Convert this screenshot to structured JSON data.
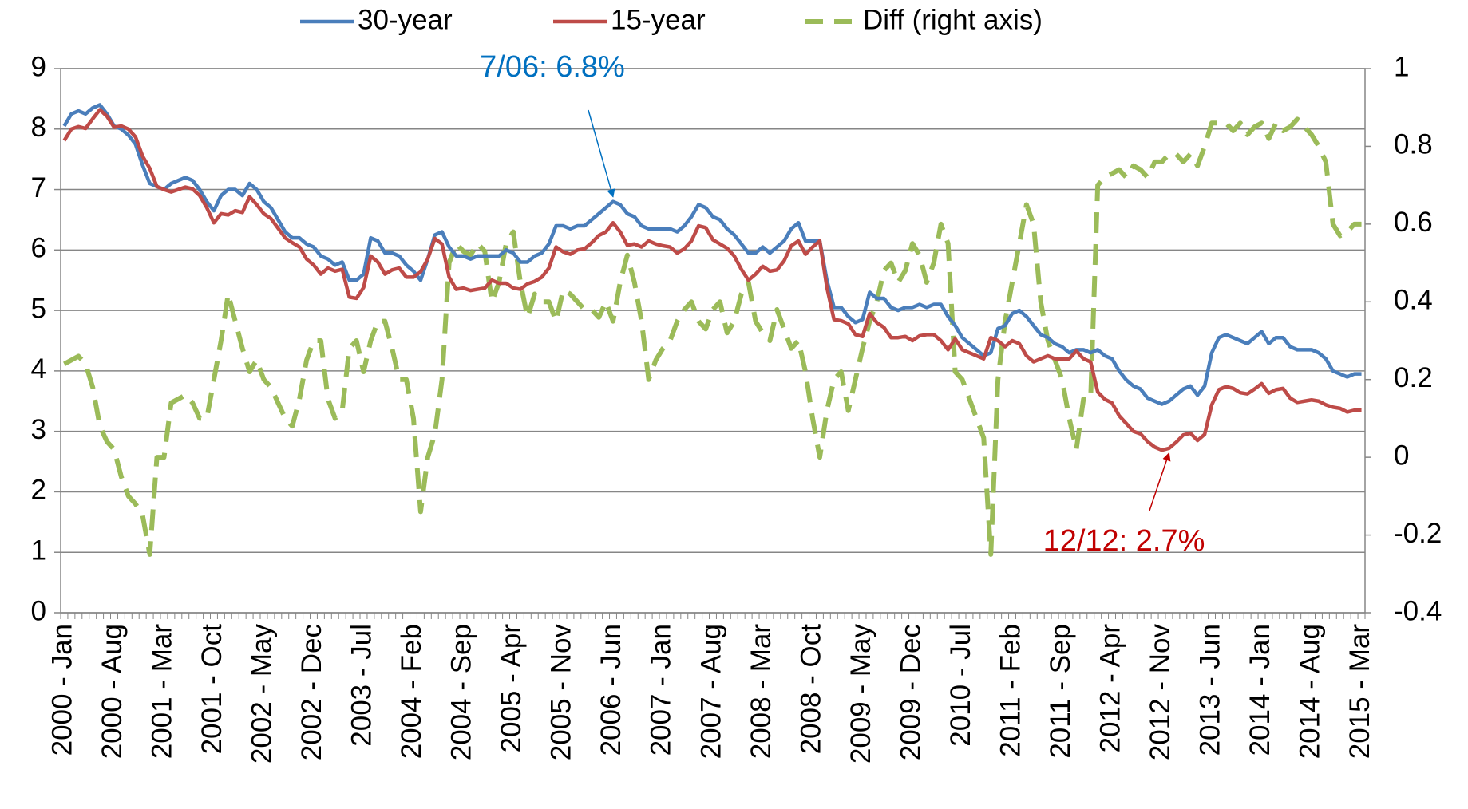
{
  "chart_data": {
    "type": "line",
    "legend": "top",
    "grid": true,
    "categories": [
      "2000 - Jan",
      null,
      null,
      null,
      null,
      null,
      null,
      "2000 - Aug",
      null,
      null,
      null,
      null,
      null,
      null,
      "2001 - Mar",
      null,
      null,
      null,
      null,
      null,
      null,
      "2001 - Oct",
      null,
      null,
      null,
      null,
      null,
      null,
      "2002 - May",
      null,
      null,
      null,
      null,
      null,
      null,
      "2002 - Dec",
      null,
      null,
      null,
      null,
      null,
      null,
      "2003 - Jul",
      null,
      null,
      null,
      null,
      null,
      null,
      "2004 - Feb",
      null,
      null,
      null,
      null,
      null,
      null,
      "2004 - Sep",
      null,
      null,
      null,
      null,
      null,
      null,
      "2005 - Apr",
      null,
      null,
      null,
      null,
      null,
      null,
      "2005 - Nov",
      null,
      null,
      null,
      null,
      null,
      null,
      "2006 - Jun",
      null,
      null,
      null,
      null,
      null,
      null,
      "2007 - Jan",
      null,
      null,
      null,
      null,
      null,
      null,
      "2007 - Aug",
      null,
      null,
      null,
      null,
      null,
      null,
      "2008 - Mar",
      null,
      null,
      null,
      null,
      null,
      null,
      "2008 - Oct",
      null,
      null,
      null,
      null,
      null,
      null,
      "2009 - May",
      null,
      null,
      null,
      null,
      null,
      null,
      "2009 - Dec",
      null,
      null,
      null,
      null,
      null,
      null,
      "2010 - Jul",
      null,
      null,
      null,
      null,
      null,
      null,
      "2011 - Feb",
      null,
      null,
      null,
      null,
      null,
      null,
      "2011 - Sep",
      null,
      null,
      null,
      null,
      null,
      null,
      "2012 - Apr",
      null,
      null,
      null,
      null,
      null,
      null,
      "2012 - Nov",
      null,
      null,
      null,
      null,
      null,
      null,
      "2013 - Jun",
      null,
      null,
      null,
      null,
      null,
      null,
      "2014 - Jan",
      null,
      null,
      null,
      null,
      null,
      null,
      "2014 - Aug",
      null,
      null,
      null,
      null,
      null,
      null,
      "2015 - Mar"
    ],
    "series": [
      {
        "name": "30-year",
        "color": "#4a7ebb",
        "values": [
          8.05,
          8.25,
          8.3,
          8.25,
          8.35,
          8.4,
          8.25,
          8.05,
          8.0,
          7.9,
          7.75,
          7.4,
          7.1,
          7.05,
          7.0,
          7.1,
          7.15,
          7.2,
          7.15,
          7.0,
          6.8,
          6.65,
          6.9,
          7.0,
          7.0,
          6.9,
          7.1,
          7.0,
          6.8,
          6.7,
          6.5,
          6.3,
          6.2,
          6.2,
          6.1,
          6.05,
          5.9,
          5.85,
          5.75,
          5.8,
          5.5,
          5.5,
          5.6,
          6.2,
          6.15,
          5.95,
          5.95,
          5.9,
          5.75,
          5.65,
          5.5,
          5.85,
          6.25,
          6.3,
          6.05,
          5.9,
          5.9,
          5.85,
          5.9,
          5.9,
          5.9,
          5.9,
          6.0,
          5.95,
          5.8,
          5.8,
          5.9,
          5.95,
          6.1,
          6.4,
          6.4,
          6.35,
          6.4,
          6.4,
          6.5,
          6.6,
          6.7,
          6.8,
          6.75,
          6.6,
          6.55,
          6.4,
          6.35,
          6.35,
          6.35,
          6.35,
          6.3,
          6.4,
          6.55,
          6.75,
          6.7,
          6.55,
          6.5,
          6.35,
          6.25,
          6.1,
          5.95,
          5.95,
          6.05,
          5.95,
          6.05,
          6.15,
          6.35,
          6.45,
          6.15,
          6.15,
          6.15,
          5.5,
          5.05,
          5.05,
          4.9,
          4.8,
          4.85,
          5.3,
          5.2,
          5.2,
          5.05,
          5.0,
          5.05,
          5.05,
          5.1,
          5.05,
          5.1,
          5.1,
          4.9,
          4.75,
          4.55,
          4.45,
          4.35,
          4.25,
          4.3,
          4.7,
          4.75,
          4.95,
          5.0,
          4.9,
          4.75,
          4.6,
          4.55,
          4.45,
          4.4,
          4.3,
          4.35,
          4.35,
          4.3,
          4.35,
          4.25,
          4.2,
          4.0,
          3.85,
          3.75,
          3.7,
          3.55,
          3.5,
          3.45,
          3.5,
          3.6,
          3.7,
          3.75,
          3.6,
          3.75,
          4.3,
          4.55,
          4.6,
          4.55,
          4.5,
          4.45,
          4.55,
          4.65,
          4.45,
          4.55,
          4.55,
          4.4,
          4.35,
          4.35,
          4.35,
          4.3,
          4.2,
          4.0,
          3.95,
          3.9,
          3.95,
          3.95
        ]
      },
      {
        "name": "15-year",
        "color": "#be4b48",
        "values": [
          7.81,
          8.0,
          8.04,
          8.01,
          8.17,
          8.32,
          8.21,
          8.03,
          8.05,
          8.0,
          7.87,
          7.55,
          7.35,
          7.05,
          7.0,
          6.96,
          7.0,
          7.04,
          7.01,
          6.9,
          6.7,
          6.45,
          6.6,
          6.58,
          6.65,
          6.62,
          6.88,
          6.75,
          6.6,
          6.52,
          6.36,
          6.2,
          6.12,
          6.05,
          5.85,
          5.75,
          5.6,
          5.7,
          5.65,
          5.68,
          5.22,
          5.2,
          5.38,
          5.9,
          5.8,
          5.6,
          5.67,
          5.7,
          5.55,
          5.55,
          5.64,
          5.85,
          6.19,
          6.1,
          5.55,
          5.35,
          5.37,
          5.33,
          5.35,
          5.37,
          5.5,
          5.45,
          5.45,
          5.37,
          5.35,
          5.44,
          5.48,
          5.55,
          5.7,
          6.05,
          5.97,
          5.93,
          6.0,
          6.02,
          6.12,
          6.24,
          6.3,
          6.45,
          6.3,
          6.08,
          6.1,
          6.05,
          6.15,
          6.1,
          6.07,
          6.05,
          5.95,
          6.02,
          6.15,
          6.4,
          6.37,
          6.17,
          6.1,
          6.03,
          5.9,
          5.68,
          5.5,
          5.6,
          5.73,
          5.65,
          5.67,
          5.82,
          6.07,
          6.15,
          5.93,
          6.05,
          6.15,
          5.38,
          4.85,
          4.83,
          4.78,
          4.6,
          4.57,
          4.95,
          4.8,
          4.72,
          4.55,
          4.55,
          4.57,
          4.5,
          4.58,
          4.6,
          4.6,
          4.5,
          4.35,
          4.53,
          4.35,
          4.3,
          4.25,
          4.2,
          4.55,
          4.5,
          4.4,
          4.5,
          4.45,
          4.25,
          4.15,
          4.2,
          4.25,
          4.2,
          4.2,
          4.2,
          4.33,
          4.2,
          4.15,
          3.65,
          3.53,
          3.47,
          3.26,
          3.13,
          3.0,
          2.96,
          2.83,
          2.74,
          2.69,
          2.72,
          2.82,
          2.94,
          2.97,
          2.85,
          2.95,
          3.44,
          3.69,
          3.74,
          3.71,
          3.64,
          3.62,
          3.7,
          3.79,
          3.63,
          3.69,
          3.71,
          3.55,
          3.48,
          3.5,
          3.52,
          3.5,
          3.44,
          3.4,
          3.38,
          3.32,
          3.35,
          3.35
        ]
      },
      {
        "name": "Diff (right axis)",
        "color": "#9bbb59",
        "axis": "y2",
        "dashed": true,
        "values": [
          0.24,
          0.25,
          0.26,
          0.24,
          0.18,
          0.08,
          0.04,
          0.02,
          -0.05,
          -0.1,
          -0.12,
          -0.15,
          -0.25,
          0.0,
          0.0,
          0.14,
          0.15,
          0.16,
          0.14,
          0.1,
          0.1,
          0.2,
          0.3,
          0.42,
          0.35,
          0.28,
          0.22,
          0.25,
          0.2,
          0.18,
          0.14,
          0.1,
          0.08,
          0.15,
          0.25,
          0.3,
          0.3,
          0.15,
          0.1,
          0.12,
          0.28,
          0.3,
          0.22,
          0.3,
          0.35,
          0.35,
          0.28,
          0.2,
          0.2,
          0.1,
          -0.14,
          0.0,
          0.06,
          0.2,
          0.5,
          0.55,
          0.53,
          0.52,
          0.55,
          0.53,
          0.4,
          0.45,
          0.55,
          0.58,
          0.45,
          0.36,
          0.42,
          0.4,
          0.4,
          0.35,
          0.43,
          0.42,
          0.4,
          0.38,
          0.38,
          0.36,
          0.4,
          0.35,
          0.45,
          0.52,
          0.45,
          0.35,
          0.2,
          0.25,
          0.28,
          0.3,
          0.35,
          0.38,
          0.4,
          0.35,
          0.33,
          0.38,
          0.4,
          0.32,
          0.35,
          0.42,
          0.45,
          0.35,
          0.32,
          0.3,
          0.38,
          0.33,
          0.28,
          0.3,
          0.22,
          0.1,
          0.0,
          0.12,
          0.2,
          0.22,
          0.12,
          0.2,
          0.28,
          0.35,
          0.4,
          0.48,
          0.5,
          0.45,
          0.48,
          0.55,
          0.52,
          0.45,
          0.5,
          0.6,
          0.55,
          0.22,
          0.2,
          0.15,
          0.1,
          0.05,
          -0.25,
          0.2,
          0.35,
          0.45,
          0.55,
          0.65,
          0.6,
          0.4,
          0.3,
          0.25,
          0.2,
          0.1,
          0.02,
          0.15,
          0.15,
          0.7,
          0.72,
          0.73,
          0.74,
          0.72,
          0.75,
          0.74,
          0.72,
          0.76,
          0.76,
          0.78,
          0.78,
          0.76,
          0.78,
          0.75,
          0.8,
          0.86,
          0.86,
          0.86,
          0.84,
          0.86,
          0.83,
          0.85,
          0.86,
          0.82,
          0.86,
          0.84,
          0.85,
          0.87,
          0.85,
          0.83,
          0.8,
          0.76,
          0.6,
          0.57,
          0.58,
          0.6,
          0.6
        ]
      }
    ],
    "ylim": [
      0,
      9
    ],
    "yticks": [
      0,
      1,
      2,
      3,
      4,
      5,
      6,
      7,
      8,
      9
    ],
    "y2lim": [
      -0.4,
      1
    ],
    "y2ticks": [
      -0.4,
      -0.2,
      0,
      0.2,
      0.4,
      0.6,
      0.8,
      1
    ],
    "annotations": [
      {
        "text": "7/06: 6.8%",
        "color": "#0070c0"
      },
      {
        "text": "12/12: 2.7%",
        "color": "#c00000"
      }
    ]
  }
}
